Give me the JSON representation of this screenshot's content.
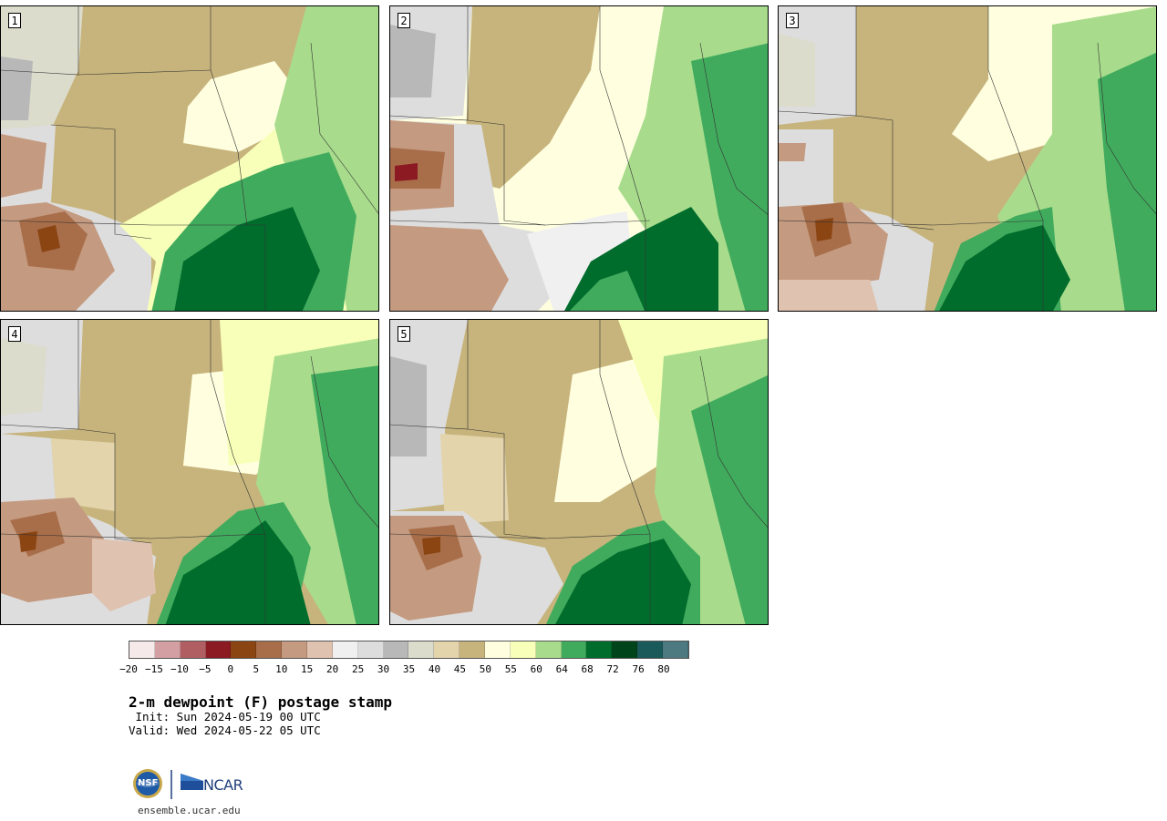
{
  "panels": [
    {
      "number": "1"
    },
    {
      "number": "2"
    },
    {
      "number": "3"
    },
    {
      "number": "4"
    },
    {
      "number": "5"
    }
  ],
  "colorbar": {
    "tick_labels": [
      "-20",
      "-15",
      "-10",
      "-5",
      "0",
      "5",
      "10",
      "15",
      "20",
      "25",
      "30",
      "35",
      "40",
      "45",
      "50",
      "55",
      "60",
      "64",
      "68",
      "72",
      "76",
      "80"
    ],
    "colors": [
      "#f5e9e9",
      "#d49fa3",
      "#b15e62",
      "#8c1a22",
      "#8b4513",
      "#a86e4a",
      "#c49a80",
      "#dfc2b0",
      "#f0f0f0",
      "#dddddd",
      "#b8b8b8",
      "#dcdccc",
      "#e3d4ac",
      "#c7b47c",
      "#ffffe0",
      "#f8ffb8",
      "#a8dc8c",
      "#41ab5d",
      "#006d2c",
      "#00441b",
      "#1a5a5a",
      "#4d7a80"
    ]
  },
  "title": "2-m dewpoint (F) postage stamp",
  "init_line": " Init: Sun 2024-05-19 00 UTC",
  "valid_line": "Valid: Wed 2024-05-22 05 UTC",
  "logo": {
    "nsf_text": "NSF",
    "ncar_text": "NCAR"
  },
  "site": "ensemble.ucar.edu"
}
